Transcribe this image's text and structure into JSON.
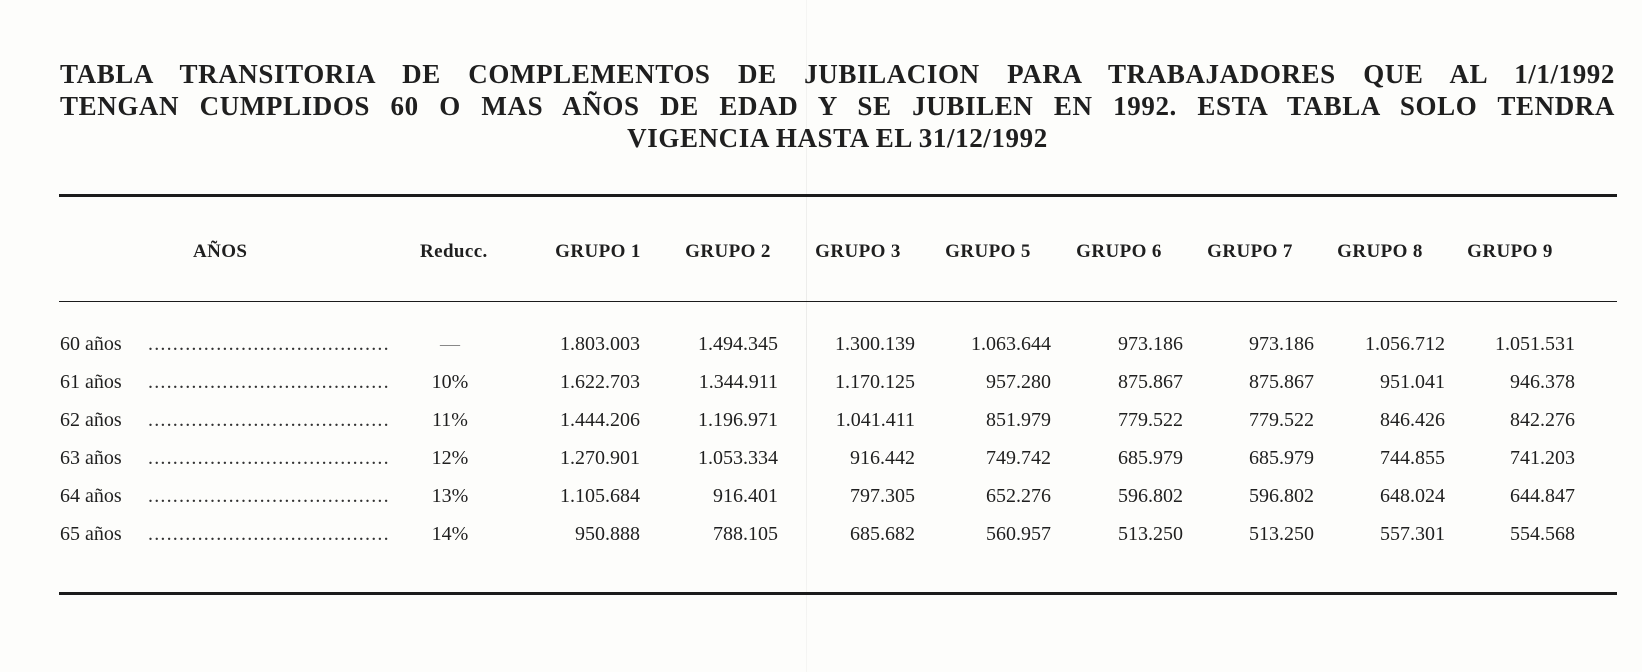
{
  "title_lines": [
    "TABLA TRANSITORIA DE COMPLEMENTOS DE JUBILACION PARA TRABAJADORES QUE AL 1/1/1992",
    "TENGAN CUMPLIDOS 60 O MAS AÑOS DE EDAD Y SE JUBILEN EN 1992. ESTA TABLA SOLO TENDRA",
    "VIGENCIA HASTA EL 31/12/1992"
  ],
  "table": {
    "headers": {
      "years": "AÑOS",
      "reduction": "Reducc.",
      "groups": [
        "GRUPO 1",
        "GRUPO 2",
        "GRUPO 3",
        "GRUPO 5",
        "GRUPO 6",
        "GRUPO 7",
        "GRUPO 8",
        "GRUPO 9"
      ]
    },
    "rows": [
      {
        "age": "60 años",
        "dots": "...........................................",
        "reduction": "—",
        "values": [
          "1.803.003",
          "1.494.345",
          "1.300.139",
          "1.063.644",
          "973.186",
          "973.186",
          "1.056.712",
          "1.051.531"
        ]
      },
      {
        "age": "61 años",
        "dots": "...........................................",
        "reduction": "10%",
        "values": [
          "1.622.703",
          "1.344.911",
          "1.170.125",
          "957.280",
          "875.867",
          "875.867",
          "951.041",
          "946.378"
        ]
      },
      {
        "age": "62 años",
        "dots": "...........................................",
        "reduction": "11%",
        "values": [
          "1.444.206",
          "1.196.971",
          "1.041.411",
          "851.979",
          "779.522",
          "779.522",
          "846.426",
          "842.276"
        ]
      },
      {
        "age": "63 años",
        "dots": "...........................................",
        "reduction": "12%",
        "values": [
          "1.270.901",
          "1.053.334",
          "916.442",
          "749.742",
          "685.979",
          "685.979",
          "744.855",
          "741.203"
        ]
      },
      {
        "age": "64 años",
        "dots": "...........................................",
        "reduction": "13%",
        "values": [
          "1.105.684",
          "916.401",
          "797.305",
          "652.276",
          "596.802",
          "596.802",
          "648.024",
          "644.847"
        ]
      },
      {
        "age": "65 años",
        "dots": "...........................................",
        "reduction": "14%",
        "values": [
          "950.888",
          "788.105",
          "685.682",
          "560.957",
          "513.250",
          "513.250",
          "557.301",
          "554.568"
        ]
      }
    ]
  }
}
